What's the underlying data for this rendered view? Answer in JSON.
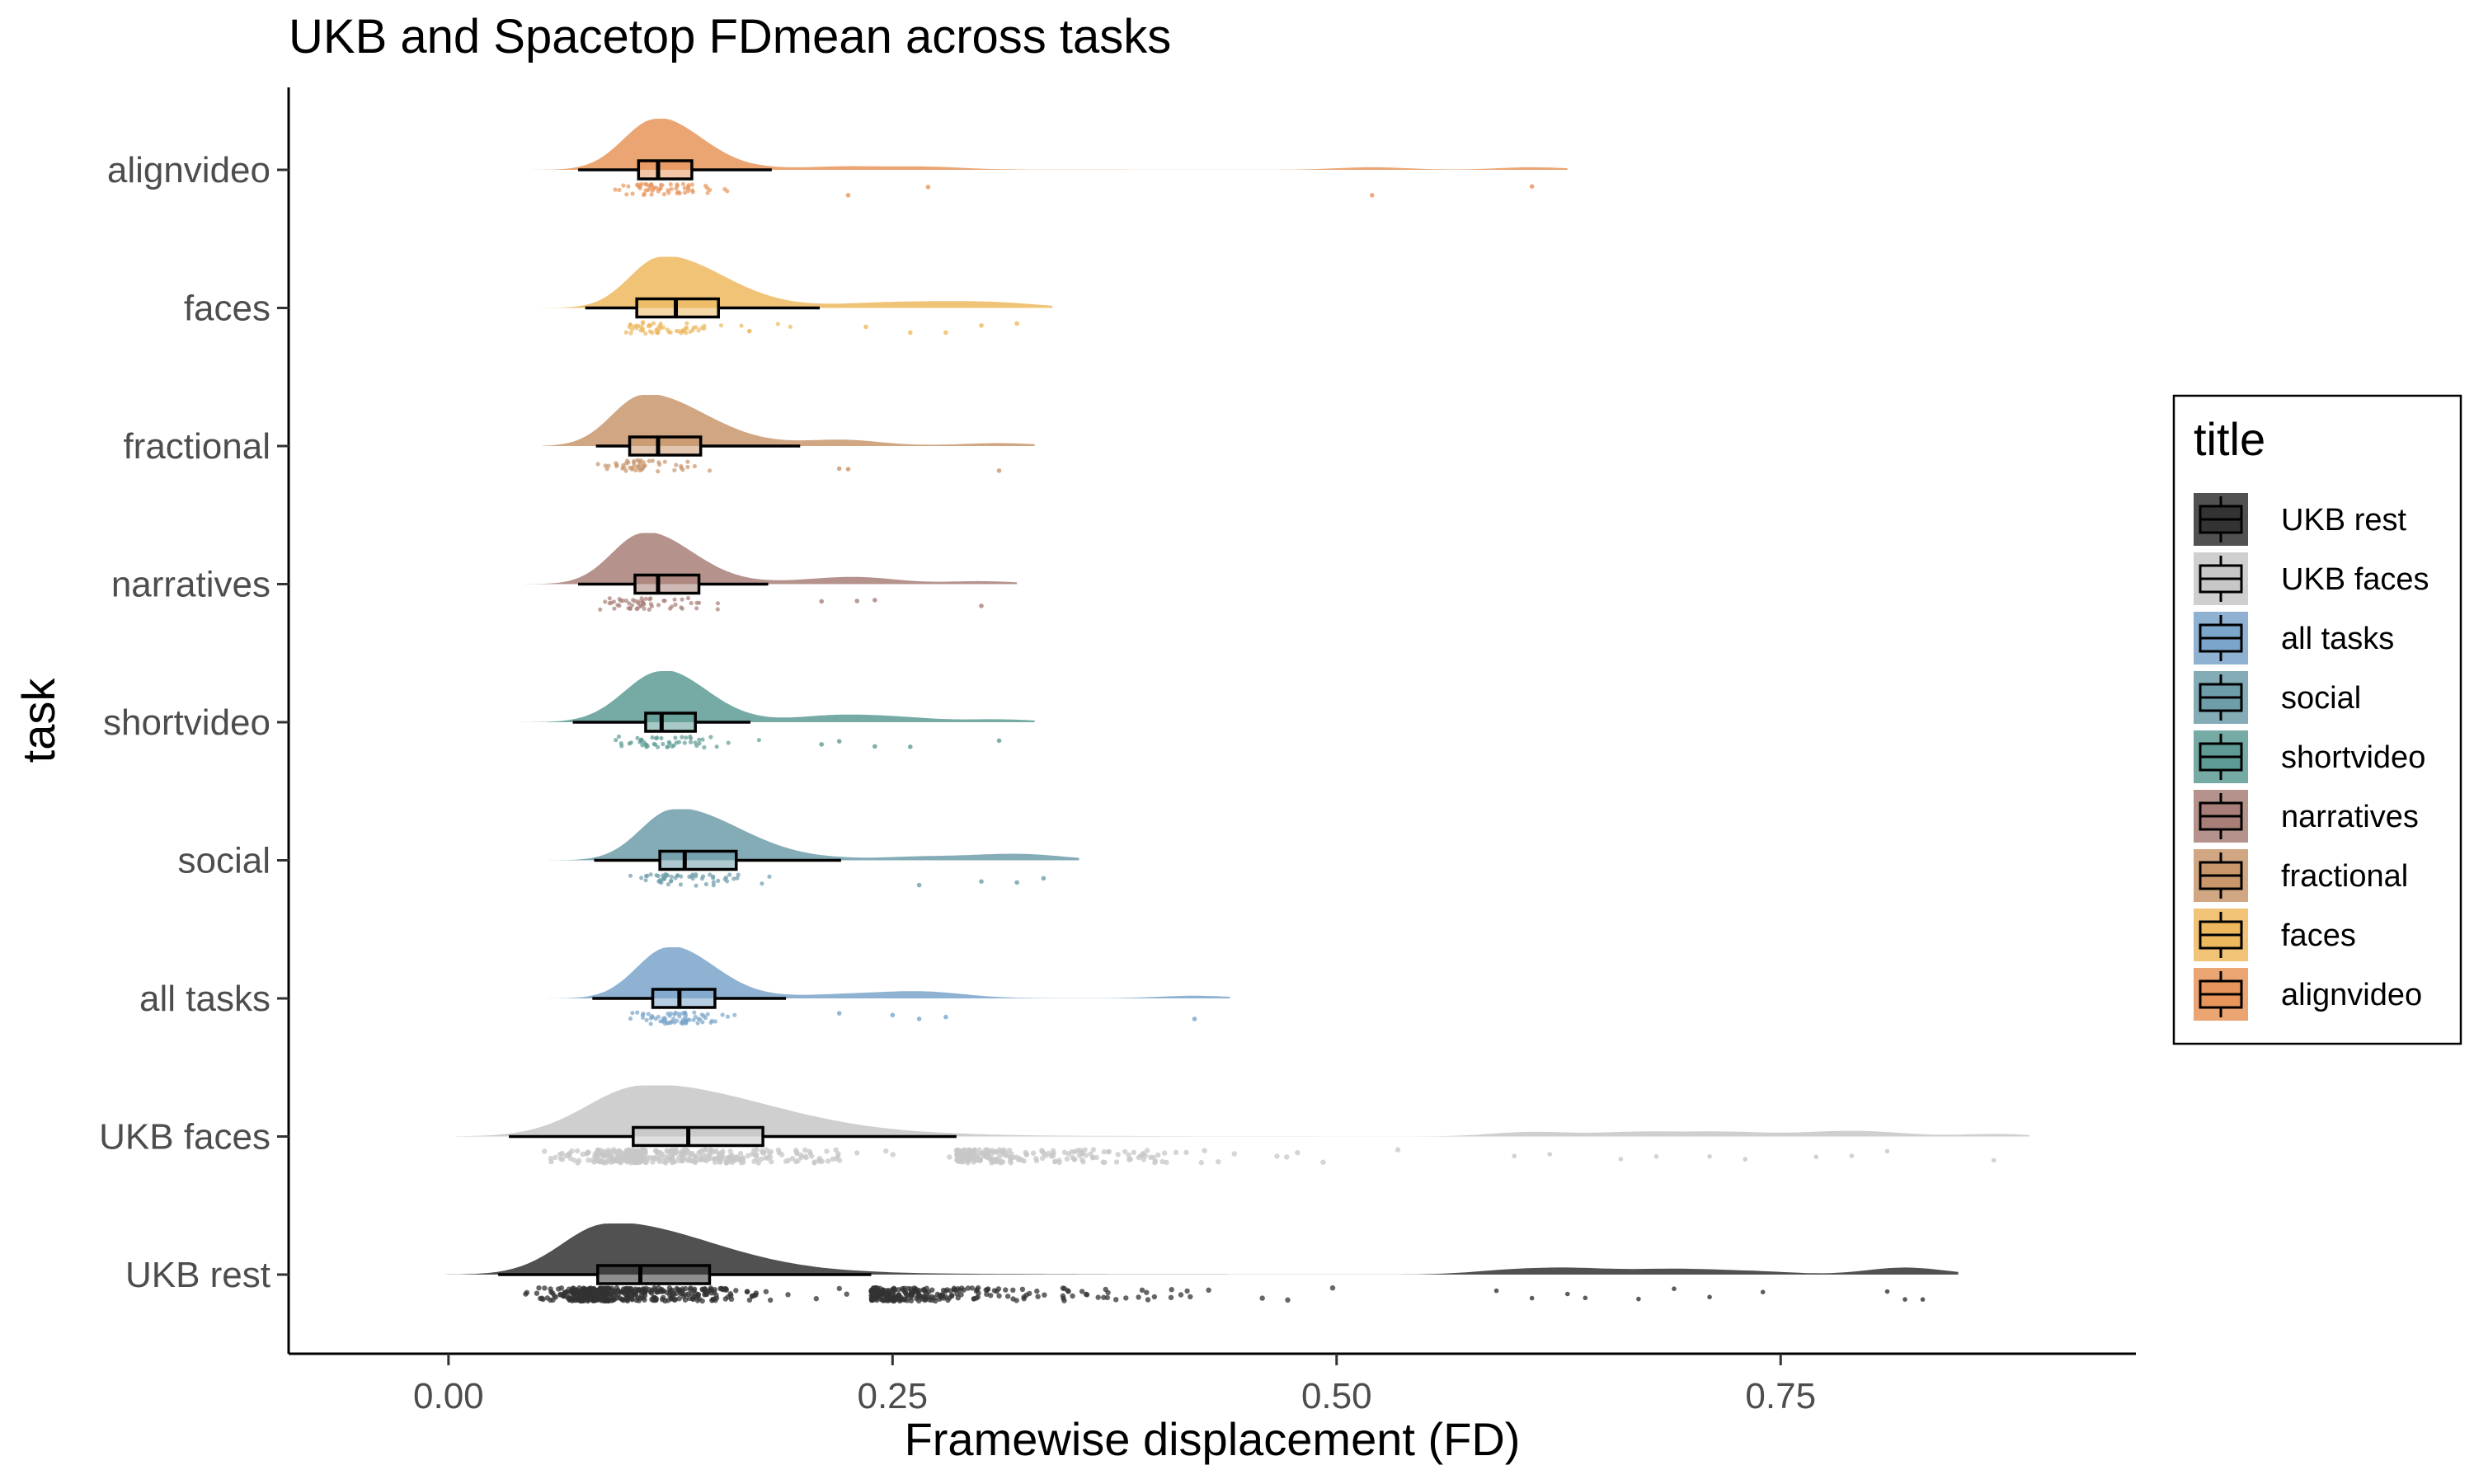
{
  "chart_data": {
    "type": "raincloud",
    "title": "UKB and Spacetop FDmean across tasks",
    "xlabel": "Framewise displacement (FD)",
    "ylabel": "task",
    "xlim": [
      -0.09,
      0.95
    ],
    "xticks": [
      0.0,
      0.25,
      0.5,
      0.75
    ],
    "xtick_labels": [
      "0.00",
      "0.25",
      "0.50",
      "0.75"
    ],
    "categories": [
      "alignvideo",
      "faces",
      "fractional",
      "narratives",
      "shortvideo",
      "social",
      "all tasks",
      "UKB faces",
      "UKB rest"
    ],
    "series": [
      {
        "name": "alignvideo",
        "color": "#E8955B",
        "mode": 0.117,
        "q1": 0.107,
        "median": 0.118,
        "q3": 0.137,
        "whisker_low": 0.073,
        "whisker_high": 0.182,
        "n_points": 60,
        "extreme_points": [
          0.225,
          0.27,
          0.52,
          0.61
        ]
      },
      {
        "name": "faces",
        "color": "#EDB85E",
        "mode": 0.12,
        "q1": 0.106,
        "median": 0.128,
        "q3": 0.152,
        "whisker_low": 0.077,
        "whisker_high": 0.209,
        "n_points": 60,
        "extreme_points": [
          0.235,
          0.26,
          0.28,
          0.3,
          0.32
        ]
      },
      {
        "name": "fractional",
        "color": "#C9966C",
        "mode": 0.11,
        "q1": 0.102,
        "median": 0.118,
        "q3": 0.142,
        "whisker_low": 0.083,
        "whisker_high": 0.198,
        "n_points": 50,
        "extreme_points": [
          0.22,
          0.225,
          0.31
        ]
      },
      {
        "name": "narratives",
        "color": "#A87F78",
        "mode": 0.11,
        "q1": 0.105,
        "median": 0.118,
        "q3": 0.141,
        "whisker_low": 0.073,
        "whisker_high": 0.18,
        "n_points": 55,
        "extreme_points": [
          0.21,
          0.23,
          0.24,
          0.3
        ]
      },
      {
        "name": "shortvideo",
        "color": "#5E9B94",
        "mode": 0.12,
        "q1": 0.111,
        "median": 0.12,
        "q3": 0.139,
        "whisker_low": 0.07,
        "whisker_high": 0.17,
        "n_points": 50,
        "extreme_points": [
          0.21,
          0.22,
          0.24,
          0.26,
          0.31
        ]
      },
      {
        "name": "social",
        "color": "#6E9DAA",
        "mode": 0.127,
        "q1": 0.119,
        "median": 0.133,
        "q3": 0.162,
        "whisker_low": 0.082,
        "whisker_high": 0.221,
        "n_points": 55,
        "extreme_points": [
          0.265,
          0.3,
          0.32,
          0.335
        ]
      },
      {
        "name": "all tasks",
        "color": "#7BA5CA",
        "mode": 0.124,
        "q1": 0.115,
        "median": 0.13,
        "q3": 0.15,
        "whisker_low": 0.081,
        "whisker_high": 0.19,
        "n_points": 70,
        "extreme_points": [
          0.22,
          0.25,
          0.265,
          0.28,
          0.42
        ]
      },
      {
        "name": "UKB faces",
        "color": "#C7C7C7",
        "mode": 0.11,
        "q1": 0.104,
        "median": 0.135,
        "q3": 0.177,
        "whisker_low": 0.034,
        "whisker_high": 0.286,
        "n_points": 600,
        "extreme_points": [
          0.6,
          0.62,
          0.66,
          0.68,
          0.71,
          0.73,
          0.77,
          0.79,
          0.81,
          0.87
        ]
      },
      {
        "name": "UKB rest",
        "color": "#333333",
        "mode": 0.09,
        "q1": 0.084,
        "median": 0.108,
        "q3": 0.147,
        "whisker_low": 0.028,
        "whisker_high": 0.238,
        "n_points": 700,
        "extreme_points": [
          0.59,
          0.61,
          0.63,
          0.64,
          0.67,
          0.69,
          0.71,
          0.74,
          0.81,
          0.82,
          0.83
        ]
      }
    ],
    "legend": {
      "title": "title",
      "position": "right",
      "entries": [
        "UKB rest",
        "UKB faces",
        "all tasks",
        "social",
        "shortvideo",
        "narratives",
        "fractional",
        "faces",
        "alignvideo"
      ]
    },
    "grid": false
  }
}
